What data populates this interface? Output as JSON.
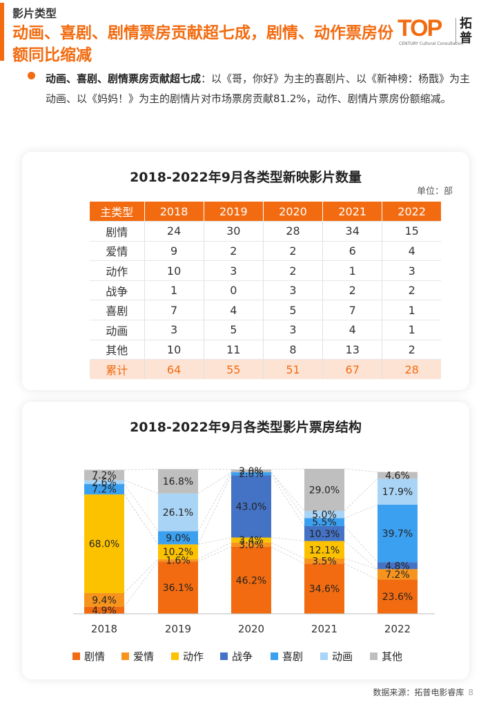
{
  "header": {
    "section_label": "影片类型",
    "headline": "动画、喜剧、剧情票房贡献超七成，剧情、动作票房份额同比缩减"
  },
  "logo": {
    "mark": "TOP",
    "cn": "拓普",
    "sub": "CENTURY Cultural Consultation"
  },
  "bullet": {
    "lead": "动画、喜剧、剧情票房贡献超七成",
    "body": "：以《哥，你好》为主的喜剧片、以《新神榜：杨戬》为主动画、以《妈妈！》为主的剧情片对市场票房贡献81.2%，动作、剧情片票房份额缩减。"
  },
  "table_card": {
    "title": "2018-2022年9月各类型新映影片数量",
    "unit": "单位：部",
    "headers": [
      "主类型",
      "2018",
      "2019",
      "2020",
      "2021",
      "2022"
    ],
    "rows": [
      [
        "剧情",
        "24",
        "30",
        "28",
        "34",
        "15"
      ],
      [
        "爱情",
        "9",
        "2",
        "2",
        "6",
        "4"
      ],
      [
        "动作",
        "10",
        "3",
        "2",
        "1",
        "3"
      ],
      [
        "战争",
        "1",
        "0",
        "3",
        "2",
        "2"
      ],
      [
        "喜剧",
        "7",
        "4",
        "5",
        "7",
        "1"
      ],
      [
        "动画",
        "3",
        "5",
        "3",
        "4",
        "1"
      ],
      [
        "其他",
        "10",
        "11",
        "8",
        "13",
        "2"
      ]
    ],
    "total": [
      "累计",
      "64",
      "55",
      "51",
      "67",
      "28"
    ]
  },
  "chart_card": {
    "title": "2018-2022年9月各类型影片票房结构"
  },
  "chart_data": {
    "type": "bar",
    "stacked": true,
    "percent": true,
    "title": "2018-2022年9月各类型影片票房结构",
    "categories": [
      "2018",
      "2019",
      "2020",
      "2021",
      "2022"
    ],
    "ylim": [
      0,
      100
    ],
    "legend_position": "bottom",
    "series": [
      {
        "name": "剧情",
        "color": "#f26b10",
        "values": [
          4.9,
          36.1,
          46.2,
          34.6,
          23.6
        ]
      },
      {
        "name": "爱情",
        "color": "#f7941d",
        "values": [
          9.4,
          1.6,
          3.0,
          3.5,
          7.2
        ]
      },
      {
        "name": "动作",
        "color": "#fcc200",
        "values": [
          68.0,
          10.2,
          3.4,
          12.1,
          0
        ]
      },
      {
        "name": "战争",
        "color": "#4472c4",
        "values": [
          0,
          0,
          43.0,
          10.3,
          4.8
        ]
      },
      {
        "name": "喜剧",
        "color": "#3ba0f0",
        "values": [
          7.2,
          9.0,
          2.0,
          5.5,
          39.7
        ]
      },
      {
        "name": "动画",
        "color": "#a9d4f5",
        "values": [
          2.6,
          26.1,
          0,
          5.0,
          17.9
        ]
      },
      {
        "name": "其他",
        "color": "#bfbfbf",
        "values": [
          7.2,
          16.8,
          2.0,
          29.0,
          4.6
        ]
      }
    ]
  },
  "footer": {
    "source": "数据来源：拓普电影睿库",
    "page": "8"
  }
}
